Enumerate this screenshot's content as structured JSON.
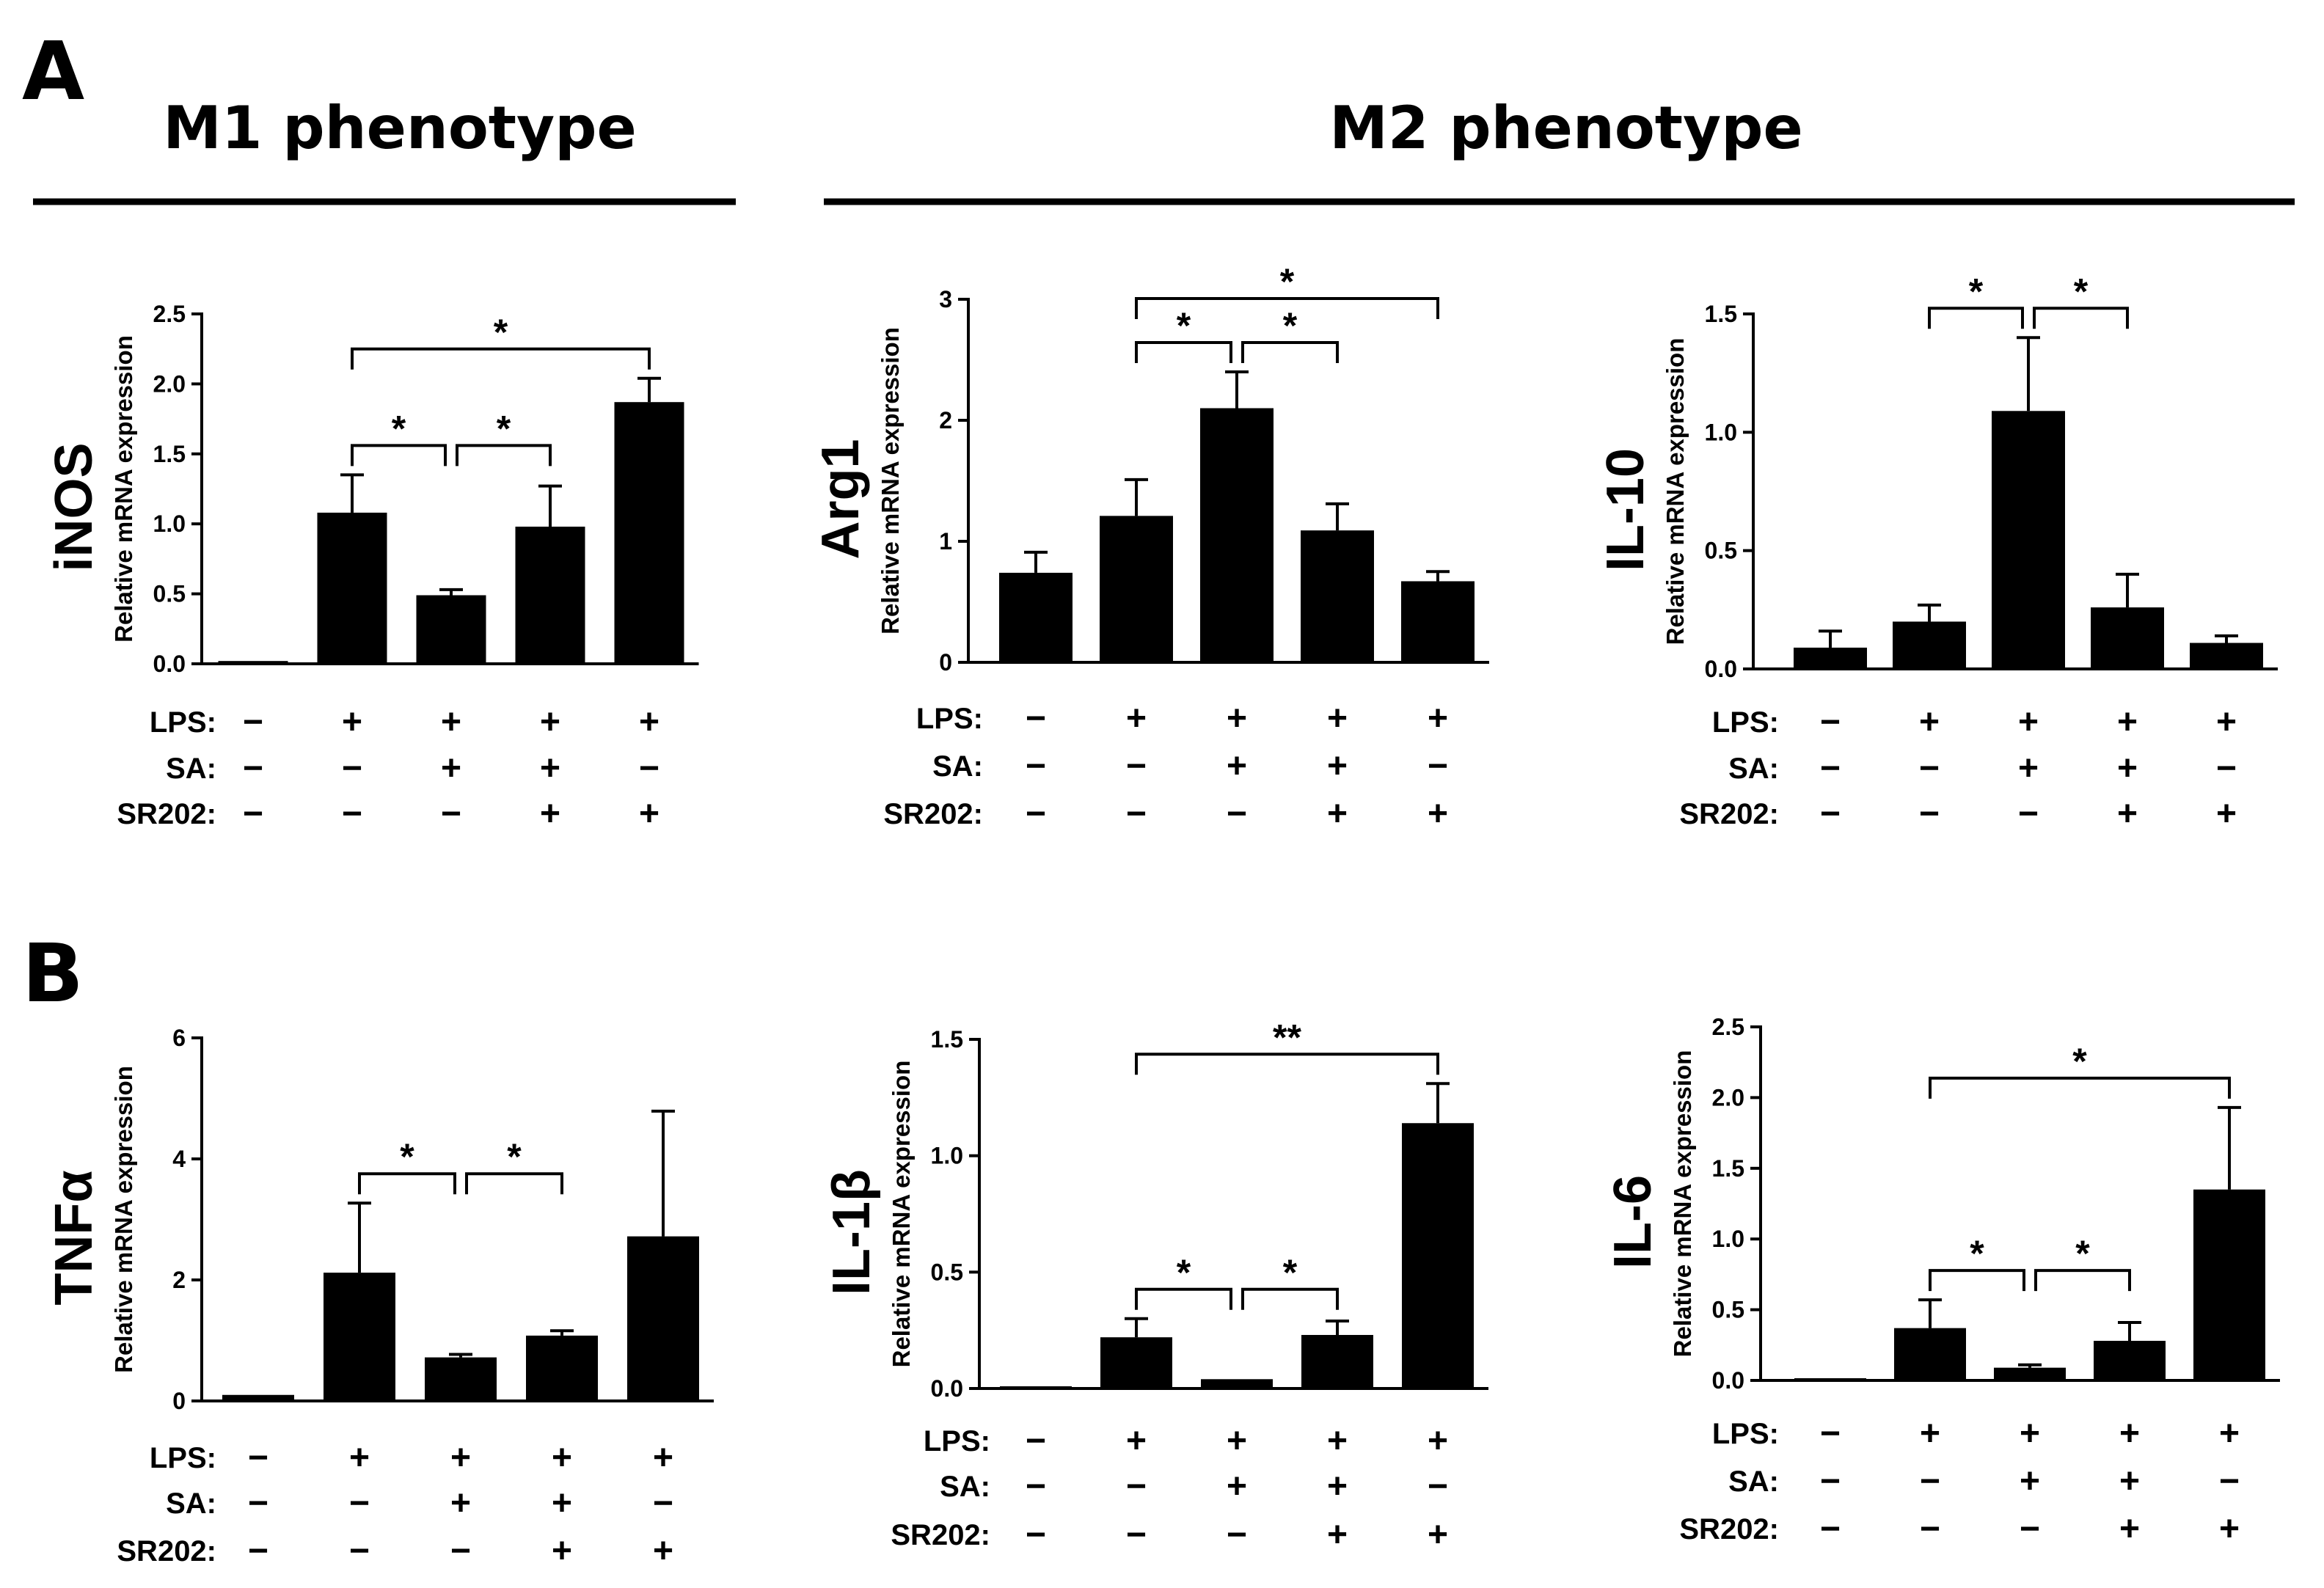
{
  "figure": {
    "panel_a_letter": "A",
    "panel_b_letter": "B",
    "m1_heading": "M1 phenotype",
    "m2_heading": "M2 phenotype"
  },
  "conditions": {
    "labels": [
      "LPS:",
      "SA:",
      "SR202:"
    ],
    "rows": [
      [
        "−",
        "+",
        "+",
        "+",
        "+"
      ],
      [
        "−",
        "−",
        "+",
        "+",
        "−"
      ],
      [
        "−",
        "−",
        "−",
        "+",
        "+"
      ]
    ]
  },
  "chart_data": [
    {
      "type": "bar",
      "gene": "iNOS",
      "ylabel": "Relative mRNA expression",
      "ylim": [
        0,
        2.5
      ],
      "yticks": [
        "0.0",
        "0.5",
        "1.0",
        "1.5",
        "2.0",
        "2.5"
      ],
      "values": [
        0.02,
        1.08,
        0.49,
        0.98,
        1.87
      ],
      "errors": [
        0.0,
        0.27,
        0.04,
        0.29,
        0.17
      ],
      "significance": [
        {
          "from": 1,
          "to": 2,
          "label": "*"
        },
        {
          "from": 2,
          "to": 3,
          "label": "*"
        },
        {
          "from": 1,
          "to": 4,
          "label": "*"
        }
      ]
    },
    {
      "type": "bar",
      "gene": "Arg1",
      "ylabel": "Relative mRNA expression",
      "ylim": [
        0,
        3
      ],
      "yticks": [
        "0",
        "1",
        "2",
        "3"
      ],
      "values": [
        0.74,
        1.21,
        2.1,
        1.09,
        0.67
      ],
      "errors": [
        0.17,
        0.3,
        0.3,
        0.22,
        0.08
      ],
      "significance": [
        {
          "from": 1,
          "to": 2,
          "label": "*"
        },
        {
          "from": 2,
          "to": 3,
          "label": "*"
        },
        {
          "from": 1,
          "to": 4,
          "label": "*"
        }
      ]
    },
    {
      "type": "bar",
      "gene": "IL-10",
      "ylabel": "Relative mRNA expression",
      "ylim": [
        0,
        1.5
      ],
      "yticks": [
        "0.0",
        "0.5",
        "1.0",
        "1.5"
      ],
      "values": [
        0.09,
        0.2,
        1.09,
        0.26,
        0.11
      ],
      "errors": [
        0.07,
        0.07,
        0.31,
        0.14,
        0.03
      ],
      "significance": [
        {
          "from": 1,
          "to": 2,
          "label": "*"
        },
        {
          "from": 2,
          "to": 3,
          "label": "*"
        }
      ]
    },
    {
      "type": "bar",
      "gene": "TNFα",
      "ylabel": "Relative mRNA expression",
      "ylim": [
        0,
        6
      ],
      "yticks": [
        "0",
        "2",
        "4",
        "6"
      ],
      "values": [
        0.1,
        2.12,
        0.72,
        1.08,
        2.72
      ],
      "errors": [
        0.0,
        1.15,
        0.05,
        0.08,
        2.07
      ],
      "significance": [
        {
          "from": 1,
          "to": 2,
          "label": "*"
        },
        {
          "from": 2,
          "to": 3,
          "label": "*"
        }
      ]
    },
    {
      "type": "bar",
      "gene": "IL-1β",
      "ylabel": "Relative mRNA expression",
      "ylim": [
        0,
        1.5
      ],
      "yticks": [
        "0.0",
        "0.5",
        "1.0",
        "1.5"
      ],
      "values": [
        0.0,
        0.22,
        0.04,
        0.23,
        1.14
      ],
      "errors": [
        0.0,
        0.08,
        0.0,
        0.06,
        0.17
      ],
      "significance": [
        {
          "from": 1,
          "to": 2,
          "label": "*"
        },
        {
          "from": 2,
          "to": 3,
          "label": "*"
        },
        {
          "from": 1,
          "to": 4,
          "label": "**"
        }
      ]
    },
    {
      "type": "bar",
      "gene": "IL-6",
      "ylabel": "Relative mRNA expression",
      "ylim": [
        0,
        2.5
      ],
      "yticks": [
        "0.0",
        "0.5",
        "1.0",
        "1.5",
        "2.0",
        "2.5"
      ],
      "values": [
        0.0,
        0.37,
        0.09,
        0.28,
        1.35
      ],
      "errors": [
        0.0,
        0.2,
        0.02,
        0.13,
        0.58
      ],
      "significance": [
        {
          "from": 1,
          "to": 2,
          "label": "*"
        },
        {
          "from": 2,
          "to": 3,
          "label": "*"
        },
        {
          "from": 1,
          "to": 4,
          "label": "*"
        }
      ]
    }
  ]
}
